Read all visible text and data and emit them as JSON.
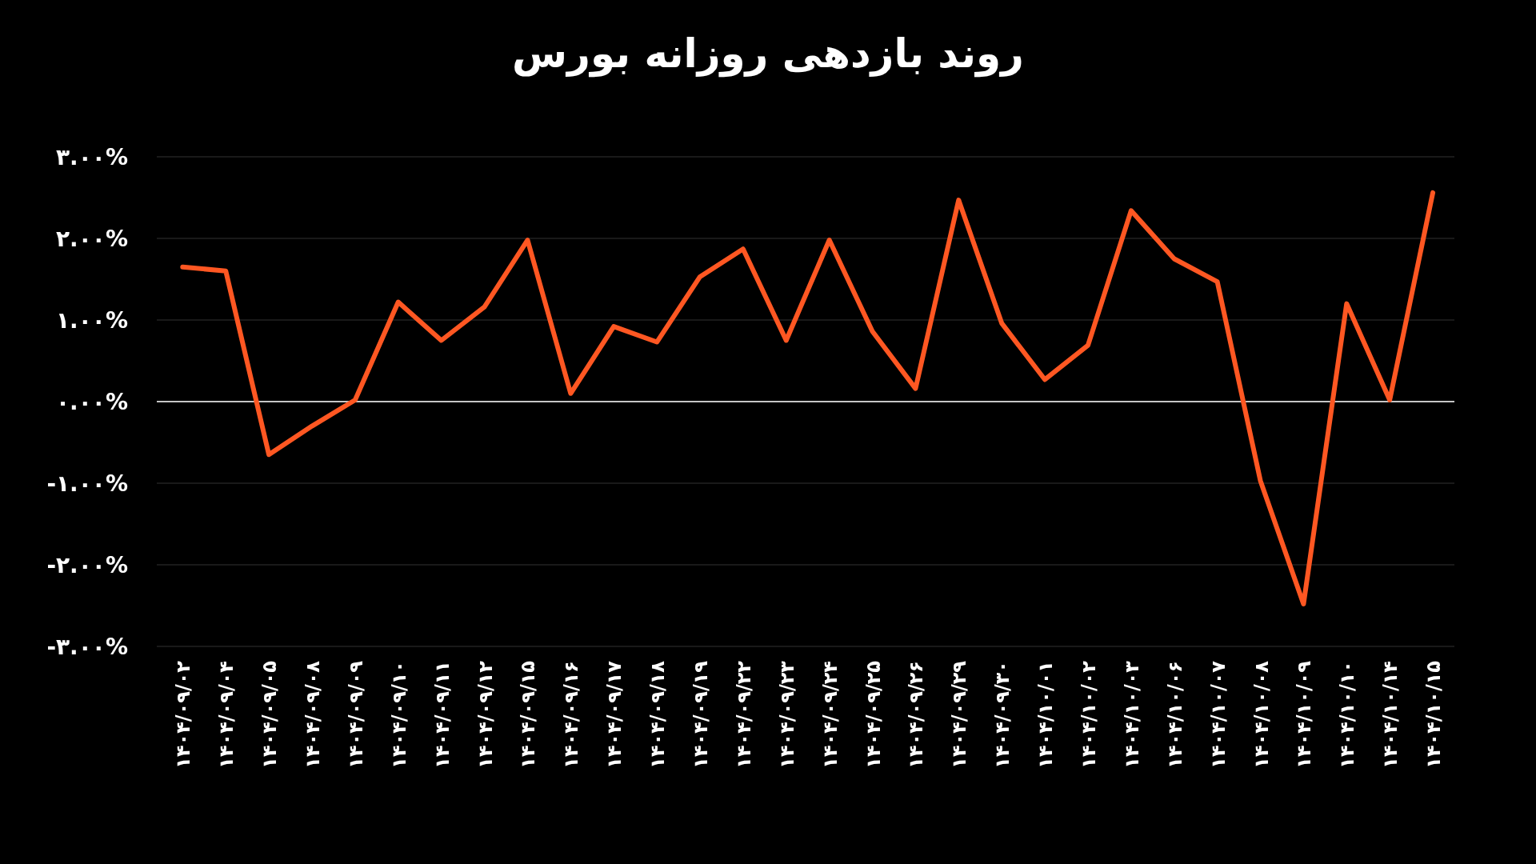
{
  "chart_data": {
    "type": "line",
    "title": "روند بازدهی روزانه بورس",
    "categories": [
      "۱۴۰۴/۰۹/۰۲",
      "۱۴۰۴/۰۹/۰۴",
      "۱۴۰۴/۰۹/۰۵",
      "۱۴۰۴/۰۹/۰۸",
      "۱۴۰۴/۰۹/۰۹",
      "۱۴۰۴/۰۹/۱۰",
      "۱۴۰۴/۰۹/۱۱",
      "۱۴۰۴/۰۹/۱۲",
      "۱۴۰۴/۰۹/۱۵",
      "۱۴۰۴/۰۹/۱۶",
      "۱۴۰۴/۰۹/۱۷",
      "۱۴۰۴/۰۹/۱۸",
      "۱۴۰۴/۰۹/۱۹",
      "۱۴۰۴/۰۹/۲۲",
      "۱۴۰۴/۰۹/۲۳",
      "۱۴۰۴/۰۹/۲۴",
      "۱۴۰۴/۰۹/۲۵",
      "۱۴۰۴/۰۹/۲۶",
      "۱۴۰۴/۰۹/۲۹",
      "۱۴۰۴/۰۹/۳۰",
      "۱۴۰۴/۱۰/۰۱",
      "۱۴۰۴/۱۰/۰۲",
      "۱۴۰۴/۱۰/۰۳",
      "۱۴۰۴/۱۰/۰۶",
      "۱۴۰۴/۱۰/۰۷",
      "۱۴۰۴/۱۰/۰۸",
      "۱۴۰۴/۱۰/۰۹",
      "۱۴۰۴/۱۰/۱۰",
      "۱۴۰۴/۱۰/۱۴",
      "۱۴۰۴/۱۰/۱۵"
    ],
    "values": [
      1.65,
      1.6,
      -0.65,
      -0.3,
      0.02,
      1.22,
      0.75,
      1.16,
      1.98,
      0.1,
      0.92,
      0.73,
      1.53,
      1.87,
      0.75,
      1.98,
      0.86,
      0.16,
      2.47,
      0.96,
      0.27,
      0.69,
      2.34,
      1.75,
      1.47,
      -0.97,
      -2.48,
      1.2,
      0.02,
      2.56
    ],
    "color": "#ff5722",
    "ylim": [
      -3,
      3
    ],
    "yticks": [
      {
        "value": -3,
        "label": "-۳.۰۰%"
      },
      {
        "value": -2,
        "label": "-۲.۰۰%"
      },
      {
        "value": -1,
        "label": "-۱.۰۰%"
      },
      {
        "value": 0,
        "label": "۰.۰۰%"
      },
      {
        "value": 1,
        "label": "۱.۰۰%"
      },
      {
        "value": 2,
        "label": "۲.۰۰%"
      },
      {
        "value": 3,
        "label": "۳.۰۰%"
      }
    ],
    "grid": "y",
    "ref_lines": [
      {
        "axis": "y",
        "value": 0,
        "color": "#ffffff"
      }
    ],
    "marker": "none",
    "line_style": "solid"
  }
}
